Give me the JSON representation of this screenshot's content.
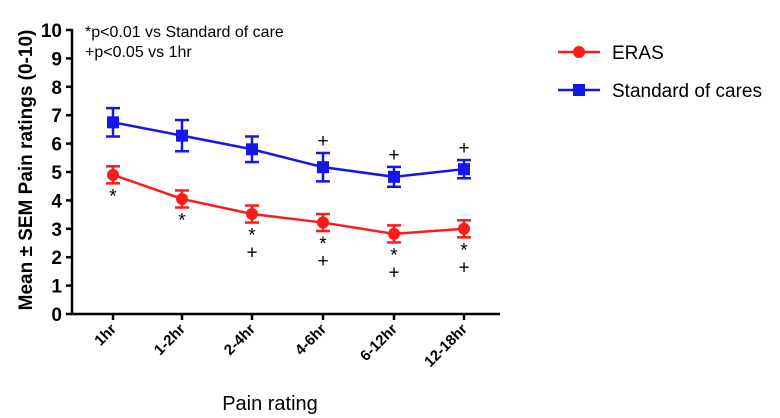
{
  "chart_data": {
    "type": "line",
    "xlabel": "Pain rating",
    "ylabel": "Mean ± SEM Pain ratings (0-10)",
    "ylim": [
      0,
      10
    ],
    "yticks": [
      "0",
      "1",
      "2",
      "3",
      "4",
      "5",
      "6",
      "7",
      "8",
      "9",
      "10"
    ],
    "categories": [
      "1hr",
      "1-2hr",
      "2-4hr",
      "4-6hr",
      "6-12hr",
      "12-18hr"
    ],
    "annotations": [
      "*p<0.01 vs Standard of care",
      "+p<0.05 vs 1hr"
    ],
    "legend_position": "top-right",
    "series": [
      {
        "name": "ERAS",
        "color": "#ff1a1a",
        "marker": "circle",
        "values": [
          4.9,
          4.05,
          3.52,
          3.22,
          2.82,
          3.0
        ],
        "sem": [
          0.3,
          0.3,
          0.3,
          0.3,
          0.3,
          0.3
        ],
        "marks": [
          [
            "*"
          ],
          [
            "*"
          ],
          [
            "*",
            "+"
          ],
          [
            "*",
            "+"
          ],
          [
            "*",
            "+"
          ],
          [
            "*",
            "+"
          ]
        ]
      },
      {
        "name": "Standard of cares",
        "color": "#1515ee",
        "marker": "square",
        "values": [
          6.75,
          6.28,
          5.8,
          5.17,
          4.83,
          5.1
        ],
        "sem": [
          0.5,
          0.55,
          0.45,
          0.5,
          0.35,
          0.32
        ],
        "marks": [
          [],
          [],
          [],
          [
            "+"
          ],
          [
            "+"
          ],
          [
            "+"
          ]
        ]
      }
    ]
  }
}
